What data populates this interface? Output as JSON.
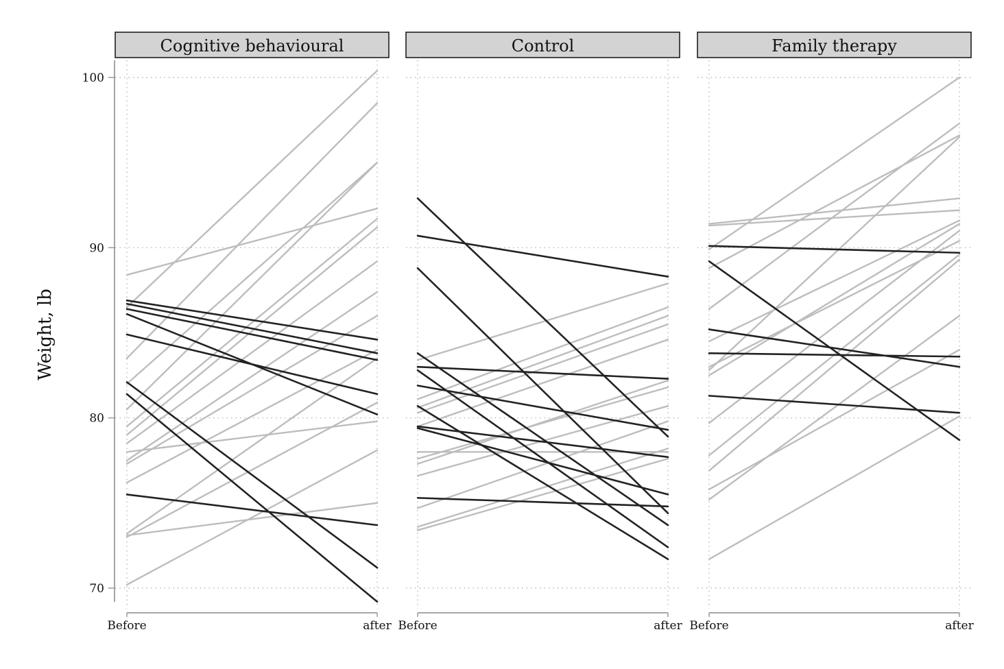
{
  "chart_data": {
    "type": "line",
    "ylabel": "Weight, lb",
    "ylim": [
      70,
      100
    ],
    "yticks": [
      70,
      80,
      90,
      100
    ],
    "x_categories": [
      "Before",
      "after"
    ],
    "line_colors": {
      "increase": "#bdbdbd",
      "decrease": "#222222"
    },
    "grid": true,
    "panels": [
      {
        "name": "Cognitive behavioural",
        "lines": [
          [
            88.4,
            92.3
          ],
          [
            86.5,
            100.4
          ],
          [
            83.5,
            98.5
          ],
          [
            82.0,
            95.0
          ],
          [
            80.5,
            95.0
          ],
          [
            79.5,
            91.7
          ],
          [
            79.0,
            91.2
          ],
          [
            78.5,
            89.2
          ],
          [
            77.5,
            87.4
          ],
          [
            77.3,
            86.0
          ],
          [
            76.2,
            84.0
          ],
          [
            73.2,
            83.5
          ],
          [
            73.0,
            80.9
          ],
          [
            70.2,
            78.1
          ],
          [
            78.0,
            79.8
          ],
          [
            73.1,
            75.0
          ],
          [
            86.9,
            84.6
          ],
          [
            86.7,
            83.8
          ],
          [
            86.4,
            83.4
          ],
          [
            86.1,
            80.2
          ],
          [
            84.9,
            81.4
          ],
          [
            82.1,
            71.2
          ],
          [
            81.4,
            69.2
          ],
          [
            75.5,
            73.7
          ]
        ]
      },
      {
        "name": "Control",
        "lines": [
          [
            83.4,
            87.9
          ],
          [
            81.1,
            86.5
          ],
          [
            80.6,
            86.0
          ],
          [
            80.3,
            85.5
          ],
          [
            79.5,
            84.6
          ],
          [
            77.3,
            82.2
          ],
          [
            77.6,
            81.8
          ],
          [
            76.6,
            80.7
          ],
          [
            74.7,
            79.8
          ],
          [
            73.6,
            78.2
          ],
          [
            73.4,
            77.6
          ],
          [
            92.9,
            78.9
          ],
          [
            90.7,
            88.3
          ],
          [
            88.8,
            74.4
          ],
          [
            83.8,
            73.7
          ],
          [
            83.0,
            82.3
          ],
          [
            82.8,
            72.4
          ],
          [
            81.9,
            79.3
          ],
          [
            80.7,
            71.7
          ],
          [
            79.5,
            77.7
          ],
          [
            79.4,
            75.5
          ],
          [
            78.0,
            78.0
          ],
          [
            75.3,
            74.8
          ]
        ]
      },
      {
        "name": "Family therapy",
        "lines": [
          [
            91.4,
            92.9
          ],
          [
            91.3,
            92.2
          ],
          [
            89.9,
            100.0
          ],
          [
            88.8,
            96.6
          ],
          [
            86.4,
            97.3
          ],
          [
            84.5,
            91.6
          ],
          [
            82.8,
            96.5
          ],
          [
            82.5,
            91.4
          ],
          [
            83.0,
            90.4
          ],
          [
            79.7,
            91.0
          ],
          [
            77.8,
            89.6
          ],
          [
            76.9,
            89.3
          ],
          [
            75.2,
            86.0
          ],
          [
            75.8,
            84.0
          ],
          [
            71.7,
            80.1
          ],
          [
            90.1,
            89.7
          ],
          [
            89.2,
            78.7
          ],
          [
            85.2,
            83.0
          ],
          [
            83.8,
            83.6
          ],
          [
            81.3,
            80.3
          ]
        ]
      }
    ]
  }
}
